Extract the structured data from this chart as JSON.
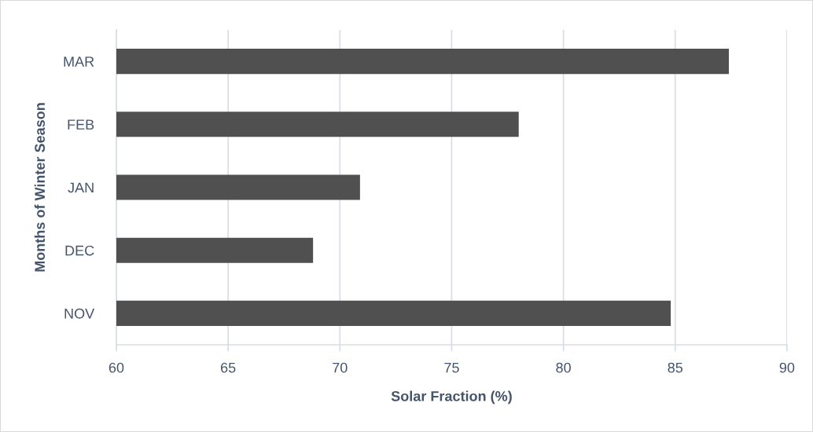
{
  "chart_data": {
    "type": "bar",
    "orientation": "horizontal",
    "xlabel": "Solar Fraction (%)",
    "ylabel": "Months of Winter Season",
    "categories": [
      "MAR",
      "FEB",
      "JAN",
      "DEC",
      "NOV"
    ],
    "series": [
      {
        "color": "#505050",
        "values": [
          87.4,
          78.0,
          70.9,
          68.8,
          84.8
        ]
      }
    ],
    "xlim": [
      60,
      90
    ],
    "xticks": [
      60,
      65,
      70,
      75,
      80,
      85,
      90
    ],
    "grid": "x",
    "legend": false
  }
}
